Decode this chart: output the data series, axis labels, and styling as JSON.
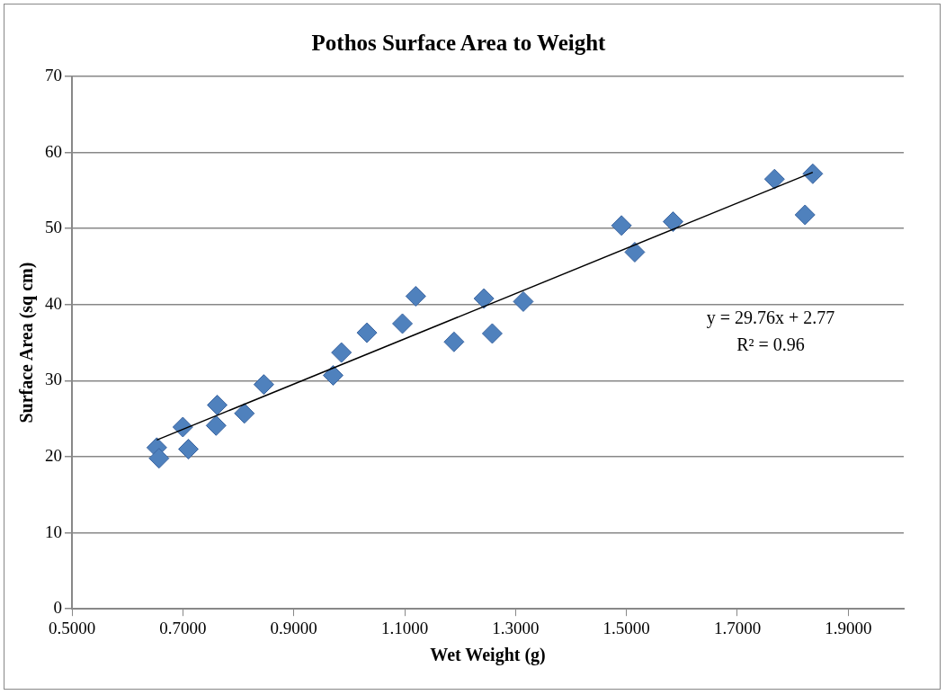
{
  "chart_data": {
    "type": "scatter",
    "title": "Pothos Surface Area to Weight",
    "xlabel": "Wet Weight (g)",
    "ylabel": "Surface Area (sq cm)",
    "series": [
      {
        "marker": "diamond",
        "color": "#4f81bd",
        "x": [
          0.653,
          0.657,
          0.7,
          0.71,
          0.762,
          0.76,
          0.811,
          0.846,
          0.971,
          0.986,
          1.032,
          1.096,
          1.12,
          1.189,
          1.243,
          1.258,
          1.314,
          1.491,
          1.515,
          1.584,
          1.767,
          1.836,
          1.822
        ],
        "values": [
          21.2,
          19.8,
          23.9,
          21.0,
          26.8,
          24.1,
          25.7,
          29.5,
          30.7,
          33.7,
          36.3,
          37.5,
          41.1,
          35.1,
          40.8,
          36.2,
          40.4,
          50.4,
          46.9,
          50.9,
          56.5,
          57.2,
          51.8
        ]
      },
      {
        "type": "line",
        "marker": "none",
        "color": "#000000",
        "x": [
          0.653,
          1.836
        ],
        "values": [
          22.2,
          57.4
        ]
      }
    ],
    "annotations": [
      "y = 29.76x + 2.77",
      "R² = 0.96"
    ],
    "xlim": [
      0.5,
      2.0
    ],
    "xticks": [
      {
        "value": 0.5,
        "label": "0.5000"
      },
      {
        "value": 0.7,
        "label": "0.7000"
      },
      {
        "value": 0.9,
        "label": "0.9000"
      },
      {
        "value": 1.1,
        "label": "1.1000"
      },
      {
        "value": 1.3,
        "label": "1.3000"
      },
      {
        "value": 1.5,
        "label": "1.5000"
      },
      {
        "value": 1.7,
        "label": "1.7000"
      },
      {
        "value": 1.9,
        "label": "1.9000"
      }
    ],
    "ylim": [
      0,
      70
    ],
    "yticks": [
      0,
      10,
      20,
      30,
      40,
      50,
      60,
      70
    ],
    "grid": "y",
    "legend": false
  }
}
